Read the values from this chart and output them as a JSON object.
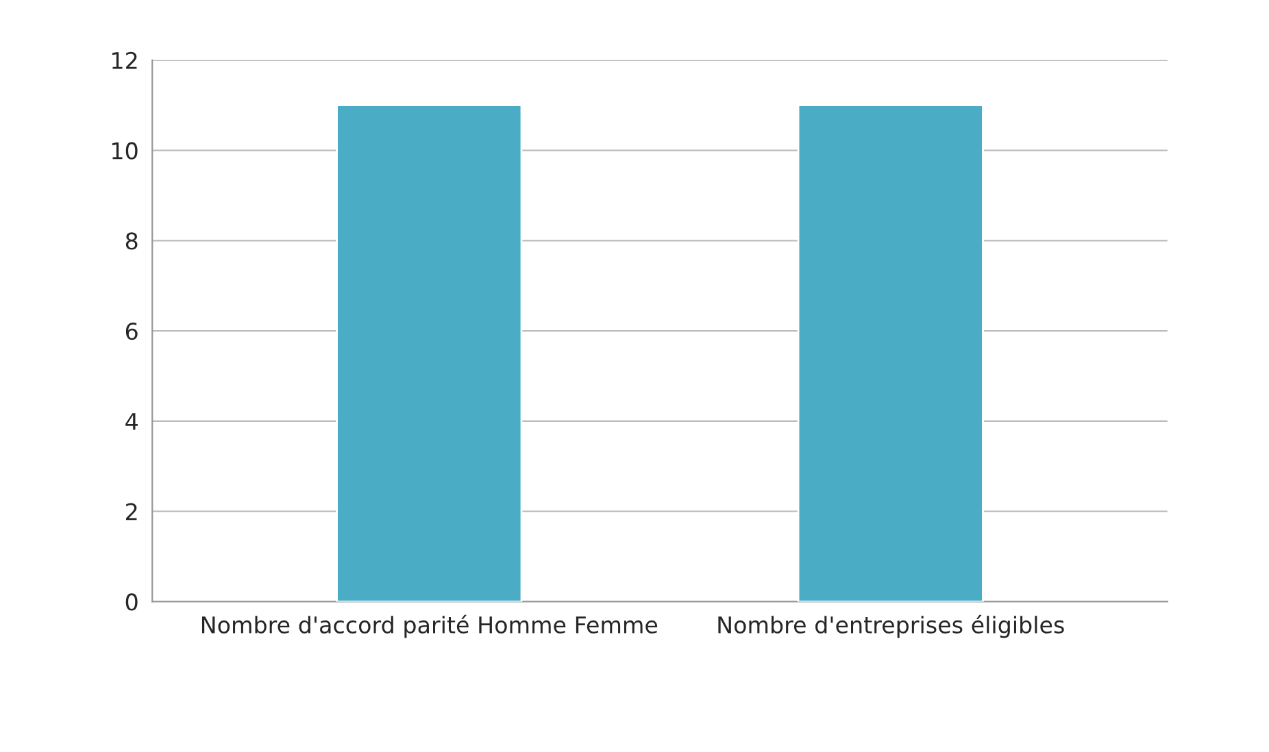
{
  "chart_data": {
    "type": "bar",
    "categories": [
      "Nombre d'accord parité Homme Femme",
      "Nombre d'entreprises éligibles"
    ],
    "values": [
      11,
      11
    ],
    "color": "#4bacc6",
    "ylim": [
      0,
      12
    ],
    "yticks": [
      0,
      2,
      4,
      6,
      8,
      10,
      12
    ],
    "grid": "y"
  }
}
